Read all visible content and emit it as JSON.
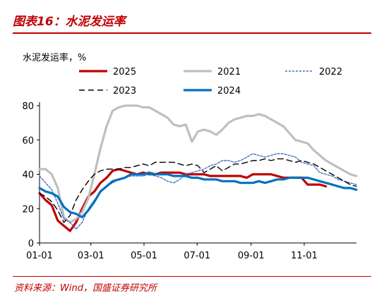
{
  "header": {
    "figure_title": "图表16：水泥发运率"
  },
  "footer": {
    "source": "资料来源：Wind，国盛证券研究所"
  },
  "colors": {
    "accent": "#c00000",
    "s2025": "#c00000",
    "s2021": "#bfbfbf",
    "s2022": "#4472c4",
    "s2023": "#000000",
    "s2024": "#0070c0"
  },
  "chart_data": {
    "type": "line",
    "ylabel": "水泥发运率，%",
    "ylim": [
      0,
      80
    ],
    "yticks": [
      0,
      20,
      40,
      60,
      80
    ],
    "xticks": [
      "01-01",
      "03-01",
      "05-01",
      "07-01",
      "09-01",
      "11-01"
    ],
    "x_unit": "day of year",
    "xlim": [
      1,
      365
    ],
    "legend_position": "top",
    "grid": false,
    "series": [
      {
        "name": "2025",
        "style": "solid-thick",
        "x": [
          1,
          8,
          15,
          22,
          29,
          36,
          43,
          50,
          57,
          64,
          71,
          78,
          85,
          92,
          99,
          106,
          113,
          120,
          127,
          134,
          141,
          148,
          155,
          162,
          169,
          176,
          183,
          190,
          197,
          204,
          211,
          218,
          225,
          232,
          239,
          246,
          253,
          260,
          267,
          274,
          281,
          288,
          295,
          302,
          309,
          316,
          323,
          330
        ],
        "y": [
          29,
          25,
          22,
          13,
          10,
          7,
          12,
          20,
          27,
          30,
          35,
          38,
          42,
          43,
          42,
          41,
          40,
          41,
          40,
          40,
          41,
          41,
          41,
          41,
          40,
          40,
          40,
          40,
          39,
          39,
          39,
          39,
          39,
          39,
          38,
          40,
          40,
          40,
          40,
          39,
          38,
          38,
          38,
          38,
          34,
          34,
          34,
          33
        ]
      },
      {
        "name": "2021",
        "style": "solid-gray",
        "x": [
          1,
          8,
          15,
          22,
          29,
          36,
          43,
          50,
          57,
          64,
          71,
          78,
          85,
          92,
          99,
          106,
          113,
          120,
          127,
          134,
          141,
          148,
          155,
          162,
          169,
          176,
          183,
          190,
          197,
          204,
          211,
          218,
          225,
          232,
          239,
          246,
          253,
          260,
          267,
          274,
          281,
          288,
          295,
          302,
          309,
          316,
          323,
          330,
          337,
          344,
          351,
          358,
          365
        ],
        "y": [
          43,
          43,
          40,
          32,
          15,
          12,
          14,
          18,
          26,
          40,
          55,
          68,
          77,
          79,
          80,
          80,
          80,
          79,
          79,
          77,
          75,
          73,
          69,
          68,
          69,
          59,
          65,
          66,
          65,
          63,
          66,
          70,
          72,
          73,
          74,
          74,
          75,
          74,
          72,
          70,
          68,
          64,
          60,
          59,
          58,
          54,
          51,
          48,
          46,
          44,
          42,
          40,
          39
        ]
      },
      {
        "name": "2022",
        "style": "dashed-blue",
        "x": [
          1,
          8,
          15,
          22,
          29,
          36,
          43,
          50,
          57,
          64,
          71,
          78,
          85,
          92,
          99,
          106,
          113,
          120,
          127,
          134,
          141,
          148,
          155,
          162,
          169,
          176,
          183,
          190,
          197,
          204,
          211,
          218,
          225,
          232,
          239,
          246,
          253,
          260,
          267,
          274,
          281,
          288,
          295,
          302,
          309,
          316,
          323,
          330,
          337,
          344,
          351,
          358,
          365
        ],
        "y": [
          39,
          35,
          31,
          23,
          14,
          12,
          8,
          12,
          20,
          25,
          30,
          33,
          35,
          37,
          38,
          39,
          39,
          39,
          40,
          39,
          38,
          36,
          35,
          37,
          40,
          41,
          42,
          43,
          45,
          46,
          48,
          48,
          47,
          48,
          50,
          52,
          51,
          50,
          51,
          52,
          52,
          51,
          50,
          47,
          46,
          45,
          41,
          40,
          39,
          37,
          36,
          35,
          34
        ]
      },
      {
        "name": "2023",
        "style": "dashed-black",
        "x": [
          1,
          8,
          15,
          22,
          29,
          36,
          43,
          50,
          57,
          64,
          71,
          78,
          85,
          92,
          99,
          106,
          113,
          120,
          127,
          134,
          141,
          148,
          155,
          162,
          169,
          176,
          183,
          190,
          197,
          204,
          211,
          218,
          225,
          232,
          239,
          246,
          253,
          260,
          267,
          274,
          281,
          288,
          295,
          302,
          309,
          316,
          323,
          330,
          337,
          344,
          351,
          358,
          365
        ],
        "y": [
          29,
          27,
          24,
          19,
          12,
          16,
          25,
          31,
          36,
          40,
          42,
          43,
          43,
          43,
          44,
          44,
          45,
          46,
          45,
          47,
          47,
          47,
          47,
          46,
          45,
          46,
          45,
          41,
          43,
          45,
          42,
          44,
          46,
          46,
          47,
          48,
          48,
          49,
          48,
          49,
          49,
          48,
          47,
          48,
          47,
          46,
          44,
          42,
          40,
          38,
          36,
          34,
          33
        ]
      },
      {
        "name": "2024",
        "style": "solid-blue-thick",
        "x": [
          1,
          8,
          15,
          22,
          29,
          36,
          43,
          50,
          57,
          64,
          71,
          78,
          85,
          92,
          99,
          106,
          113,
          120,
          127,
          134,
          141,
          148,
          155,
          162,
          169,
          176,
          183,
          190,
          197,
          204,
          211,
          218,
          225,
          232,
          239,
          246,
          253,
          260,
          267,
          274,
          281,
          288,
          295,
          302,
          309,
          316,
          323,
          330,
          337,
          344,
          351,
          358,
          365
        ],
        "y": [
          32,
          30,
          29,
          27,
          21,
          18,
          17,
          15,
          19,
          24,
          30,
          33,
          36,
          37,
          38,
          40,
          40,
          40,
          41,
          40,
          40,
          40,
          39,
          39,
          39,
          38,
          38,
          37,
          37,
          37,
          36,
          36,
          36,
          35,
          35,
          35,
          36,
          35,
          36,
          37,
          37,
          38,
          38,
          38,
          38,
          37,
          36,
          35,
          34,
          33,
          32,
          32,
          31
        ]
      }
    ]
  }
}
